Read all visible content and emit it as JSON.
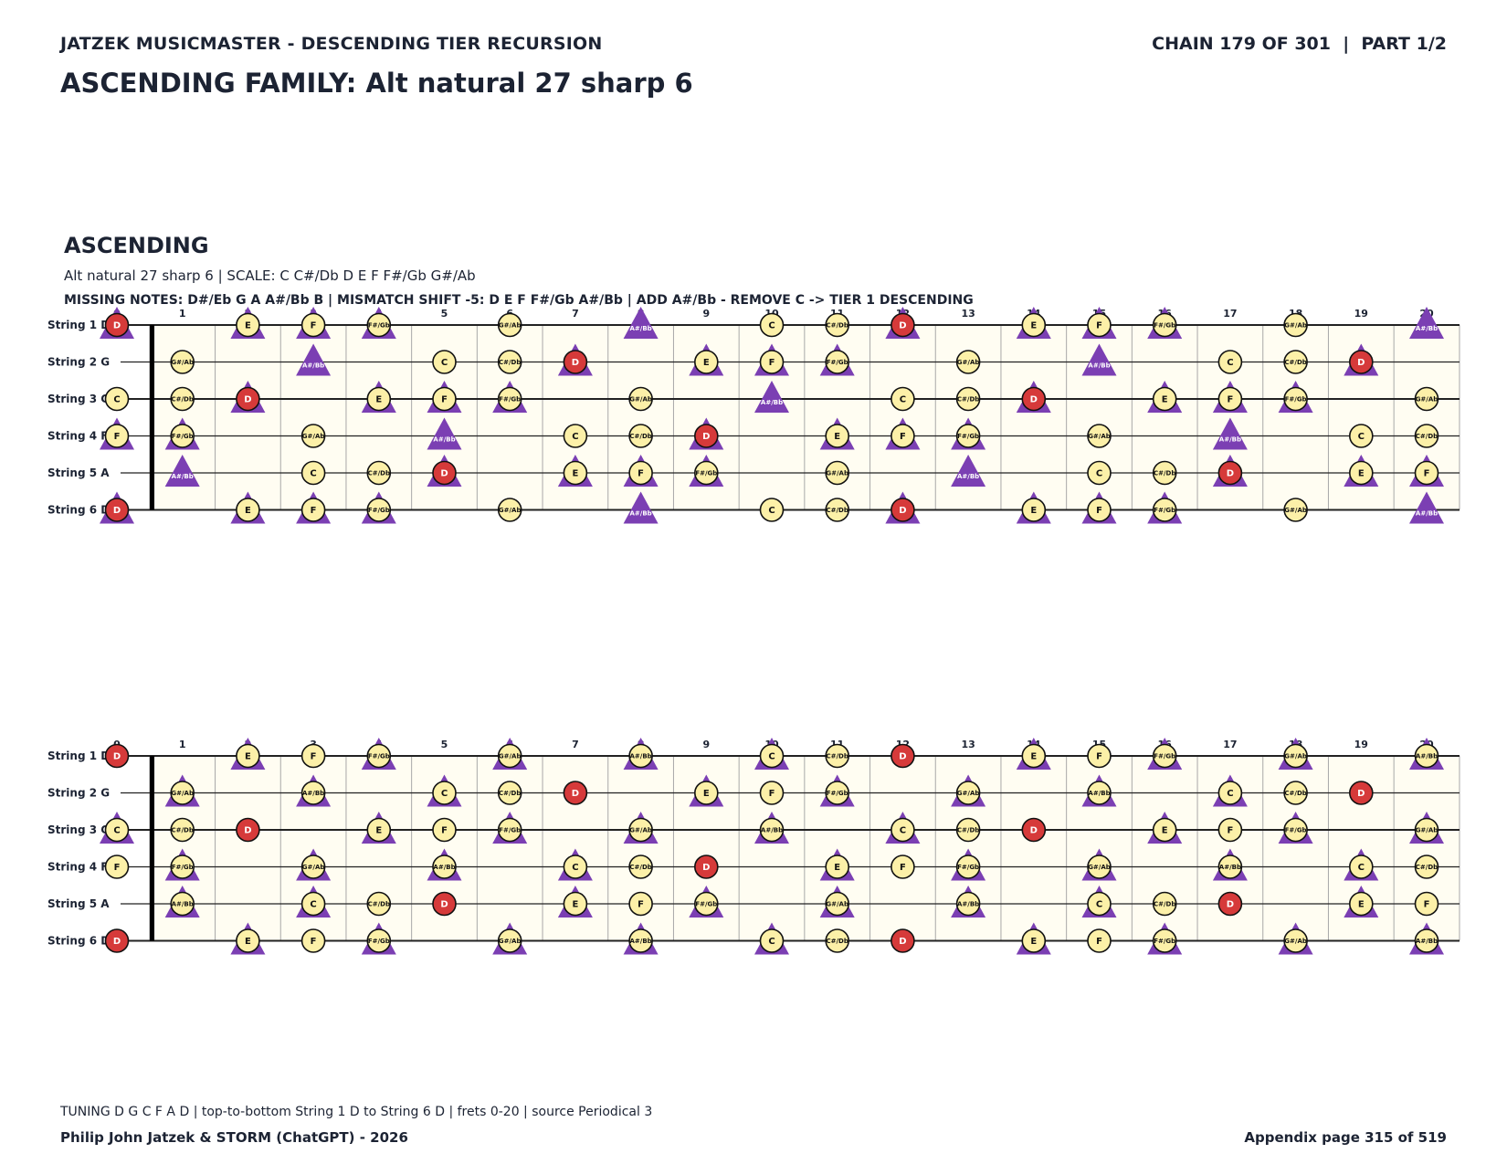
{
  "header": {
    "left": "JATZEK MUSICMASTER - DESCENDING TIER RECURSION",
    "right": "CHAIN 179 OF 301  |  PART 1/2"
  },
  "title": "ASCENDING FAMILY: Alt natural 27 sharp 6",
  "section": {
    "title": "ASCENDING",
    "subtitle": "Alt natural 27 sharp 6  |  SCALE: C C#/Db D E F F#/Gb G#/Ab",
    "missing": "MISSING NOTES: D#/Eb G A A#/Bb B  |  MISMATCH SHIFT -5: D E F F#/Gb A#/Bb  |  ADD A#/Bb - REMOVE C -> TIER 1 DESCENDING"
  },
  "footer": {
    "tuning": "TUNING D G C F A D | top-to-bottom String 1 D to String 6 D | frets 0-20 | source Periodical 3",
    "credit": "Philip John Jatzek & STORM (ChatGPT) - 2026",
    "page": "Appendix page 315 of 519"
  },
  "colors": {
    "note_fill": "#fcf0a8",
    "root_fill": "#d63a3a",
    "triangle": "#7b3fb3",
    "board": "#fffdf2",
    "ink": "#1c2333"
  },
  "fretboard": {
    "fret_numbers": [
      "0",
      "1",
      "2",
      "3",
      "4",
      "5",
      "6",
      "7",
      "8",
      "9",
      "10",
      "11",
      "12",
      "13",
      "14",
      "15",
      "16",
      "17",
      "18",
      "19",
      "20"
    ],
    "strings": [
      {
        "label": "String 1 D",
        "open": "D"
      },
      {
        "label": "String 2 G",
        "open": "G"
      },
      {
        "label": "String 3 C",
        "open": "C"
      },
      {
        "label": "String 4 F",
        "open": "F"
      },
      {
        "label": "String 5 A",
        "open": "A"
      },
      {
        "label": "String 6 D",
        "open": "D"
      }
    ],
    "chromatic": [
      "C",
      "C#/Db",
      "D",
      "D#/Eb",
      "E",
      "F",
      "F#/Gb",
      "G",
      "G#/Ab",
      "A",
      "A#/Bb",
      "B"
    ],
    "root": "D",
    "diagrams": [
      {
        "circles": [
          "C",
          "C#/Db",
          "D",
          "E",
          "F",
          "F#/Gb",
          "G#/Ab"
        ],
        "triangles": [
          "D",
          "E",
          "F",
          "F#/Gb",
          "A#/Bb"
        ]
      },
      {
        "circles": [
          "C",
          "C#/Db",
          "D",
          "E",
          "F",
          "F#/Gb",
          "G#/Ab",
          "A#/Bb"
        ],
        "triangles": [
          "C",
          "E",
          "F#/Gb",
          "G#/Ab",
          "A#/Bb"
        ]
      }
    ]
  }
}
